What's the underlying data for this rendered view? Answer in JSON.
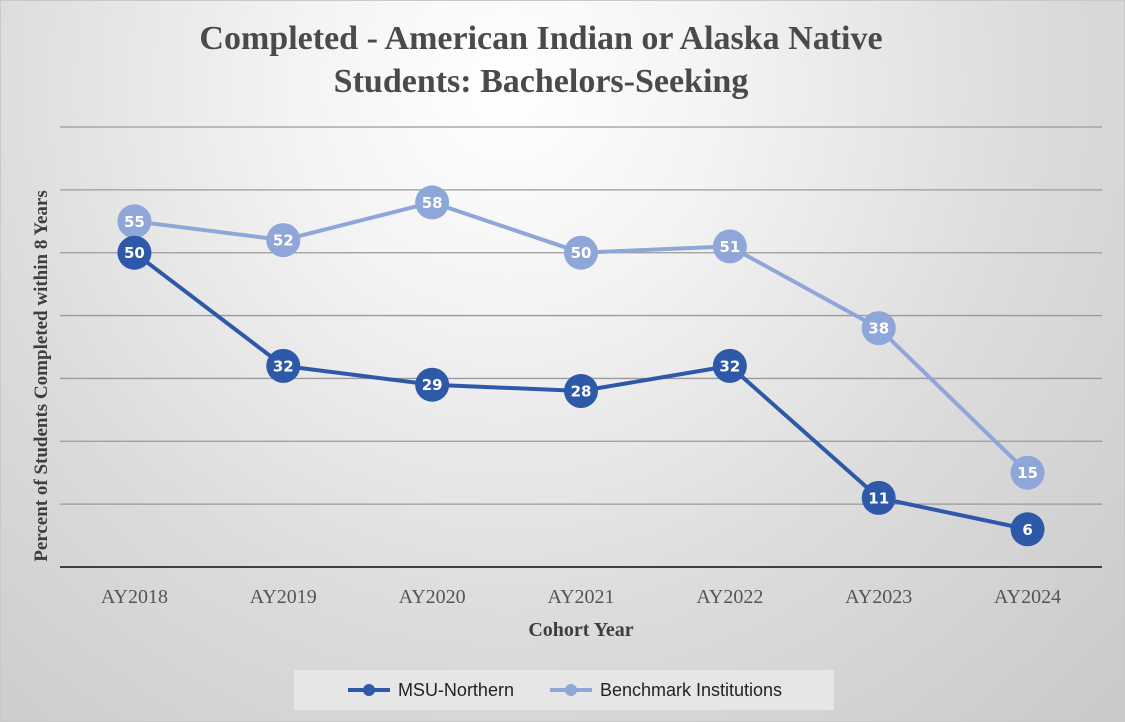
{
  "chart_data": {
    "type": "line",
    "title": "Completed - American Indian or Alaska Native\nStudents: Bachelors-Seeking",
    "xlabel": "Cohort Year",
    "ylabel": "Percent of Students Completed within 8 Years",
    "categories": [
      "AY2018",
      "AY2019",
      "AY2020",
      "AY2021",
      "AY2022",
      "AY2023",
      "AY2024"
    ],
    "ylim": [
      0,
      70
    ],
    "grid": true,
    "legend_position": "bottom",
    "series": [
      {
        "name": "MSU-Northern",
        "values": [
          50,
          32,
          29,
          28,
          32,
          11,
          6
        ],
        "color": "#2e58a8"
      },
      {
        "name": "Benchmark Institutions",
        "values": [
          55,
          52,
          58,
          50,
          51,
          38,
          15
        ],
        "color": "#8fa6d8"
      }
    ]
  }
}
